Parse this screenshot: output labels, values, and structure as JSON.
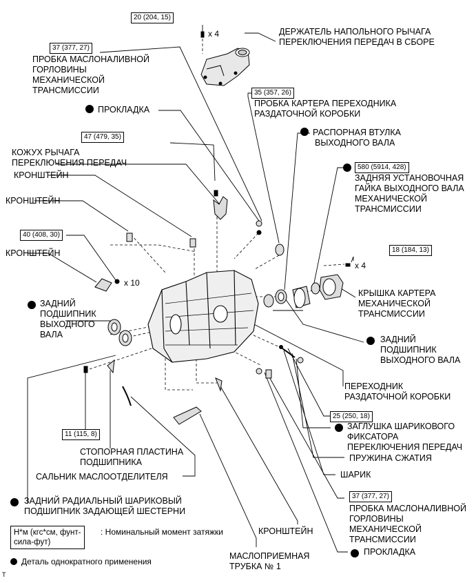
{
  "labels": {
    "shift_lever_holder": [
      "ДЕРЖАТЕЛЬ НАПОЛЬНОГО РЫЧАГА",
      "ПЕРЕКЛЮЧЕНИЯ ПЕРЕДАЧ В СБОРЕ"
    ],
    "filler_plug_top": [
      "ПРОБКА МАСЛОНАЛИВНОЙ",
      "ГОРЛОВИНЫ",
      "МЕХАНИЧЕСКОЙ",
      "ТРАНСМИССИИ"
    ],
    "gasket_top": "ПРОКЛАДКА",
    "transfer_adapter_plug": [
      "ПРОБКА КАРТЕРА ПЕРЕХОДНИКА",
      "РАЗДАТОЧНОЙ КОРОБКИ"
    ],
    "output_spacer": [
      "РАСПОРНАЯ ВТУЛКА",
      "ВЫХОДНОГО ВАЛА"
    ],
    "shift_lever_cover": [
      "КОЖУХ РЫЧАГА",
      "ПЕРЕКЛЮЧЕНИЯ ПЕРЕДАЧ"
    ],
    "bracket_a": "КРОНШТЕЙН",
    "bracket_b": "КРОНШТЕЙН",
    "bracket_c": "КРОНШТЕЙН",
    "rear_lock_nut": [
      "ЗАДНЯЯ УСТАНОВОЧНАЯ",
      "ГАЙКА ВЫХОДНОГО ВАЛА",
      "МЕХАНИЧЕСКОЙ",
      "ТРАНСМИССИИ"
    ],
    "case_cover": [
      "КРЫШКА КАРТЕРА",
      "МЕХАНИЧЕСКОЙ",
      "ТРАНСМИССИИ"
    ],
    "rear_bearing_left": [
      "ЗАДНИЙ",
      "ПОДШИПНИК",
      "ВЫХОДНОГО",
      "ВАЛА"
    ],
    "rear_bearing_right": [
      "ЗАДНИЙ",
      "ПОДШИПНИК",
      "ВЫХОДНОГО ВАЛА"
    ],
    "transfer_adapter": [
      "ПЕРЕХОДНИК",
      "РАЗДАТОЧНОЙ КОРОБКИ"
    ],
    "ball_plug": [
      "ЗАГЛУШКА ШАРИКОВОГО",
      "ФИКСАТОРА",
      "ПЕРЕКЛЮЧЕНИЯ ПЕРЕДАЧ"
    ],
    "spring": "ПРУЖИНА СЖАТИЯ",
    "ball": "ШАРИК",
    "bearing_plate": [
      "СТОПОРНАЯ ПЛАСТИНА",
      "ПОДШИПНИКА"
    ],
    "oil_separator_seal": "САЛЬНИК МАСЛООТДЕЛИТЕЛЯ",
    "radial_bearing": [
      "ЗАДНИЙ РАДИАЛЬНЫЙ ШАРИКОВЫЙ",
      "ПОДШИПНИК ЗАДАЮЩЕЙ ШЕСТЕРНИ"
    ],
    "filler_plug_bottom": [
      "ПРОБКА МАСЛОНАЛИВНОЙ",
      "ГОРЛОВИНЫ",
      "МЕХАНИЧЕСКОЙ",
      "ТРАНСМИССИИ"
    ],
    "bracket_d": "КРОНШТЕЙН",
    "gasket_bottom": "ПРОКЛАДКА",
    "oil_pipe": [
      "МАСЛОПРИЕМНАЯ",
      "ТРУБКА № 1"
    ]
  },
  "torques": {
    "t20": "20 (204, 15)",
    "t37a": "37 (377, 27)",
    "t35": "35 (357, 26)",
    "t47": "47 (479, 35)",
    "t580": "580 (5914, 428)",
    "t18": "18 (184, 13)",
    "t40": "40 (408, 30)",
    "t25": "25 (250, 18)",
    "t11": "11 (115, 8)",
    "t37b": "37 (377, 27)"
  },
  "quantities": {
    "q4a": "x 4",
    "q4b": "x 4",
    "q10": "x 10"
  },
  "legend": {
    "unit_box": [
      "Н*м (кгс*см, фунт-",
      "сила-фут)"
    ],
    "unit_text": ": Номинальный момент затяжки",
    "nonreusable": "Деталь однократного применения"
  },
  "footer_mark": "T"
}
